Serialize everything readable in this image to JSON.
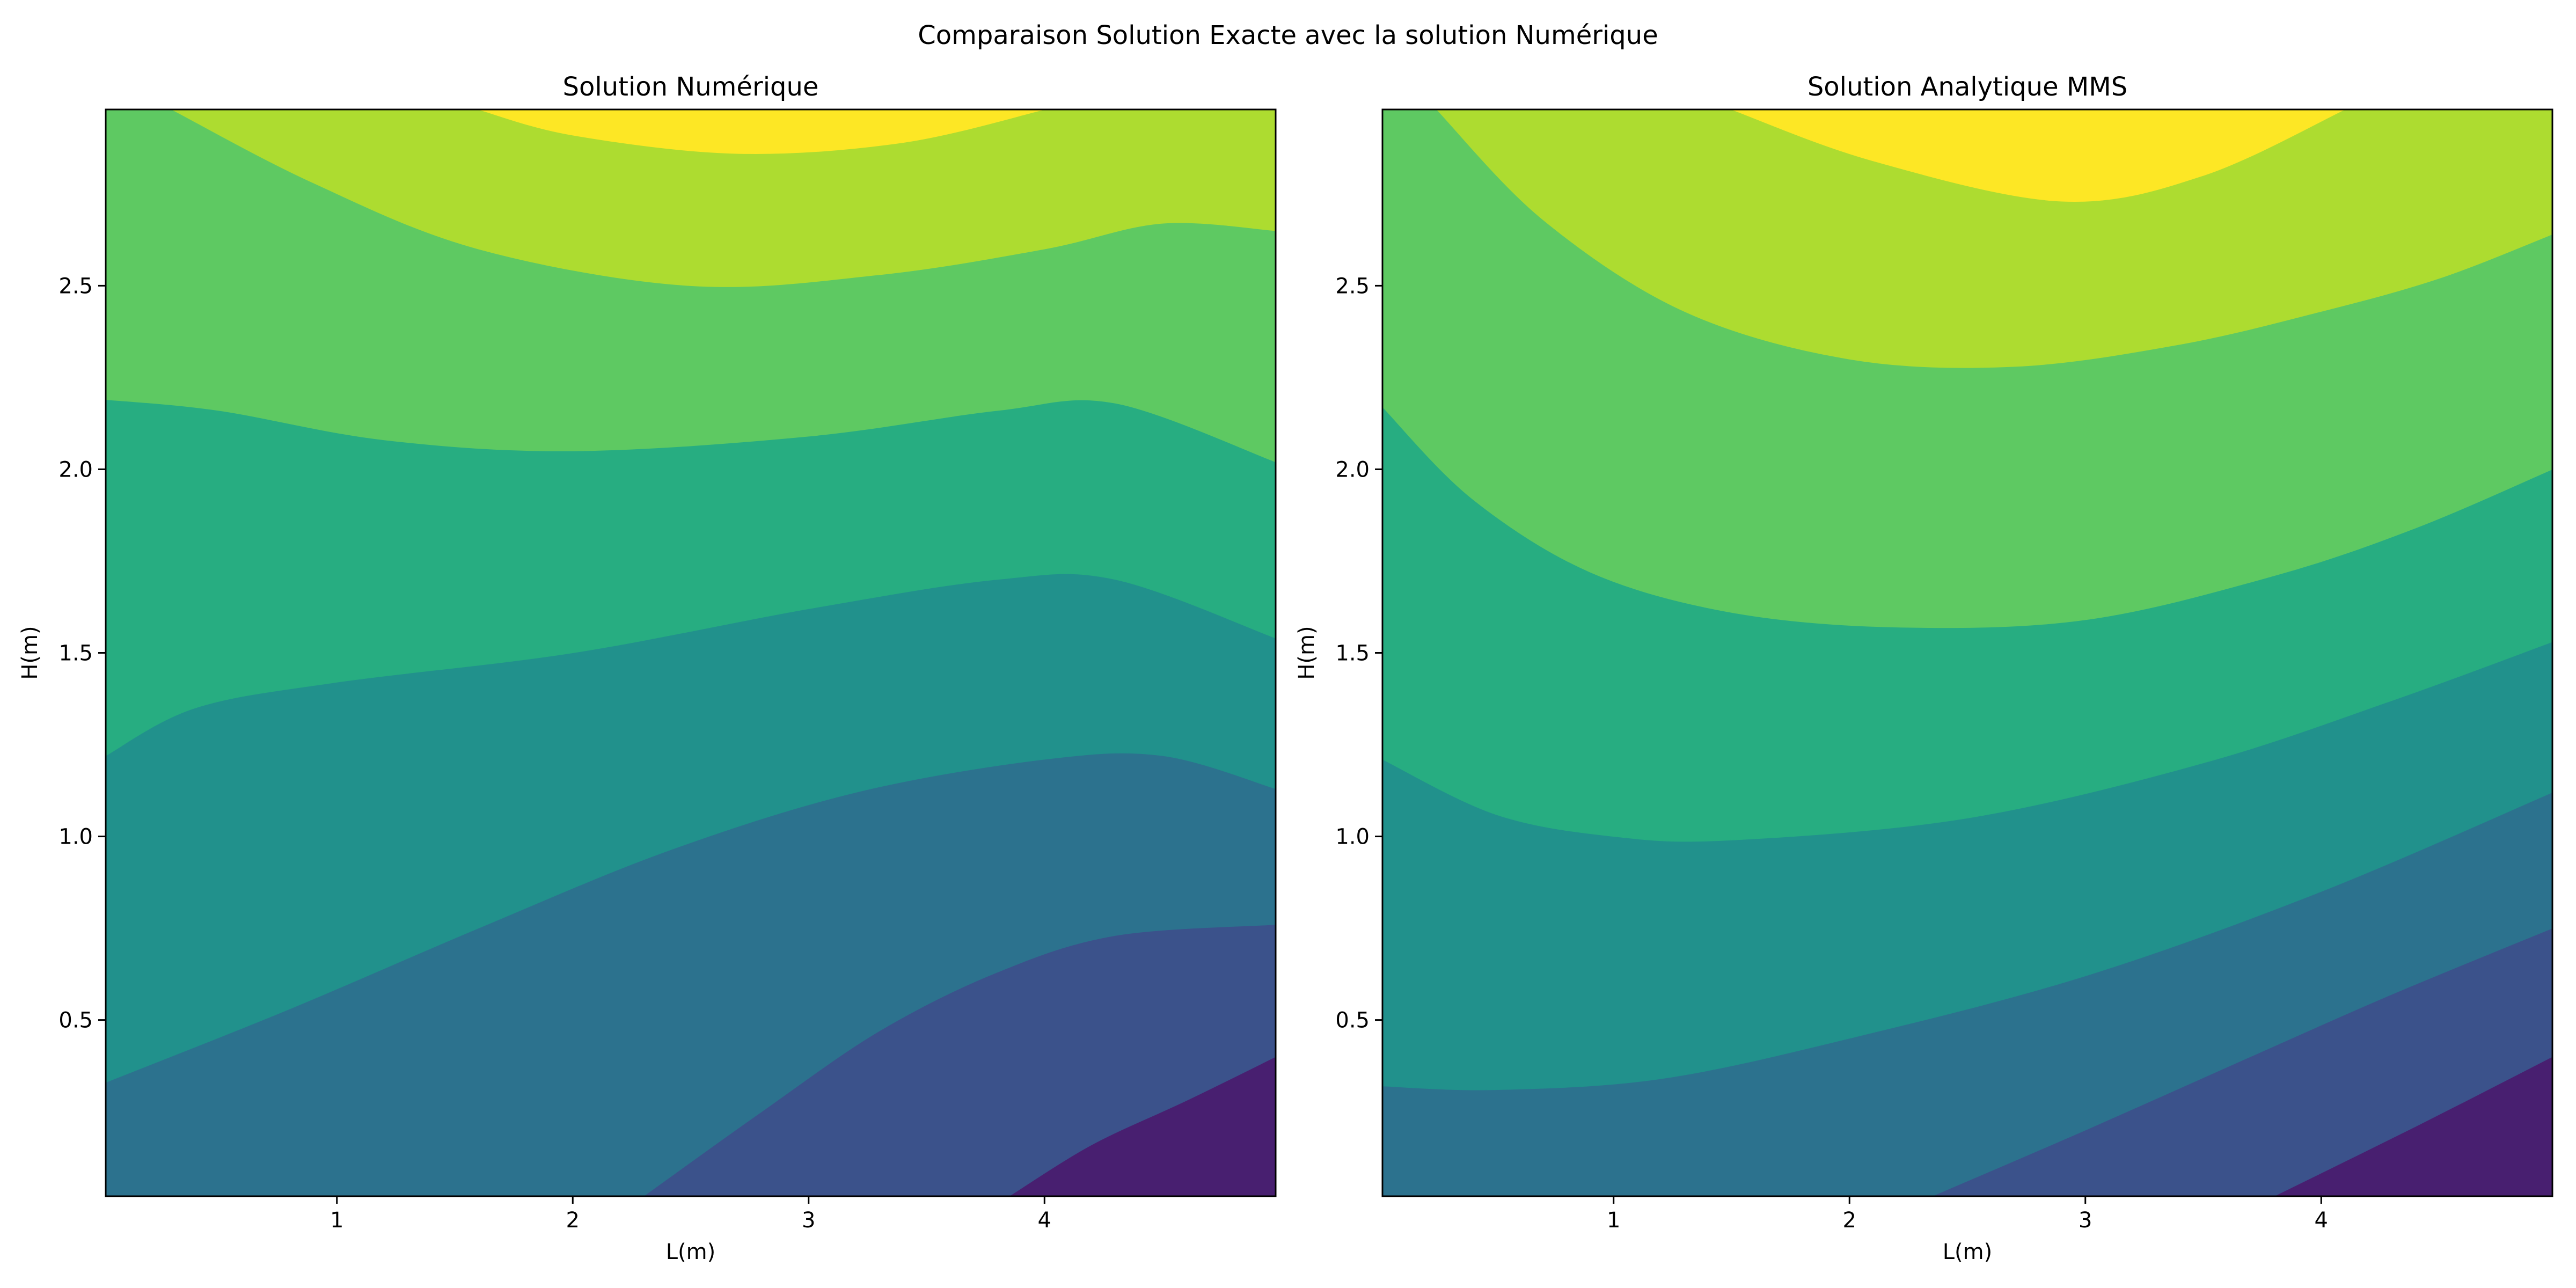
{
  "figure": {
    "suptitle": "Comparaison Solution Exacte avec la solution Numérique"
  },
  "colors": {
    "levels": [
      "#481f70",
      "#3b528b",
      "#2c728e",
      "#21918c",
      "#27ad81",
      "#5ec962",
      "#addc30",
      "#fde725"
    ]
  },
  "chart_data": [
    {
      "type": "contourf",
      "title": "Solution Numérique",
      "xlabel": "L(m)",
      "ylabel": "H(m)",
      "xlim": [
        0.02,
        4.98
      ],
      "ylim": [
        0.02,
        2.98
      ],
      "xticks": [
        1,
        2,
        3,
        4
      ],
      "yticks": [
        0.5,
        1.0,
        1.5,
        2.0,
        2.5
      ],
      "xtick_labels": [
        "1",
        "2",
        "3",
        "4"
      ],
      "ytick_labels": [
        "0.5",
        "1.0",
        "1.5",
        "2.0",
        "2.5"
      ],
      "colormap": "viridis",
      "level_boundaries": [
        {
          "level": 1,
          "points": [
            [
              3.85,
              0.02
            ],
            [
              4.2,
              0.16
            ],
            [
              4.6,
              0.28
            ],
            [
              4.98,
              0.4
            ]
          ]
        },
        {
          "level": 2,
          "points": [
            [
              2.3,
              0.02
            ],
            [
              2.8,
              0.25
            ],
            [
              3.3,
              0.47
            ],
            [
              3.8,
              0.63
            ],
            [
              4.3,
              0.73
            ],
            [
              4.98,
              0.76
            ]
          ]
        },
        {
          "level": 3,
          "points": [
            [
              0.02,
              0.33
            ],
            [
              0.8,
              0.53
            ],
            [
              1.6,
              0.75
            ],
            [
              2.4,
              0.96
            ],
            [
              3.2,
              1.12
            ],
            [
              4.0,
              1.21
            ],
            [
              4.5,
              1.22
            ],
            [
              4.98,
              1.13
            ]
          ]
        },
        {
          "level": 4,
          "points": [
            [
              0.02,
              1.22
            ],
            [
              0.4,
              1.35
            ],
            [
              1.0,
              1.42
            ],
            [
              2.0,
              1.5
            ],
            [
              3.0,
              1.62
            ],
            [
              3.8,
              1.7
            ],
            [
              4.3,
              1.7
            ],
            [
              4.98,
              1.54
            ]
          ]
        },
        {
          "level": 5,
          "points": [
            [
              0.02,
              2.19
            ],
            [
              0.5,
              2.16
            ],
            [
              1.2,
              2.08
            ],
            [
              2.0,
              2.05
            ],
            [
              3.0,
              2.09
            ],
            [
              3.8,
              2.16
            ],
            [
              4.3,
              2.18
            ],
            [
              4.98,
              2.02
            ]
          ]
        },
        {
          "level": 6,
          "points": [
            [
              0.3,
              2.98
            ],
            [
              0.9,
              2.78
            ],
            [
              1.6,
              2.6
            ],
            [
              2.5,
              2.5
            ],
            [
              3.3,
              2.53
            ],
            [
              4.0,
              2.6
            ],
            [
              4.5,
              2.67
            ],
            [
              4.98,
              2.65
            ]
          ]
        },
        {
          "level": 7,
          "points": [
            [
              1.6,
              2.98
            ],
            [
              2.0,
              2.91
            ],
            [
              2.7,
              2.86
            ],
            [
              3.4,
              2.89
            ],
            [
              4.0,
              2.98
            ]
          ]
        }
      ]
    },
    {
      "type": "contourf",
      "title": "Solution Analytique MMS",
      "xlabel": "L(m)",
      "ylabel": "H(m)",
      "xlim": [
        0.02,
        4.98
      ],
      "ylim": [
        0.02,
        2.98
      ],
      "xticks": [
        1,
        2,
        3,
        4
      ],
      "yticks": [
        0.5,
        1.0,
        1.5,
        2.0,
        2.5
      ],
      "xtick_labels": [
        "1",
        "2",
        "3",
        "4"
      ],
      "ytick_labels": [
        "0.5",
        "1.0",
        "1.5",
        "2.0",
        "2.5"
      ],
      "colormap": "viridis",
      "level_boundaries": [
        {
          "level": 1,
          "points": [
            [
              3.8,
              0.02
            ],
            [
              4.4,
              0.21
            ],
            [
              4.98,
              0.4
            ]
          ]
        },
        {
          "level": 2,
          "points": [
            [
              2.35,
              0.02
            ],
            [
              3.0,
              0.2
            ],
            [
              3.7,
              0.4
            ],
            [
              4.3,
              0.57
            ],
            [
              4.98,
              0.75
            ]
          ]
        },
        {
          "level": 3,
          "points": [
            [
              0.02,
              0.32
            ],
            [
              0.5,
              0.31
            ],
            [
              1.2,
              0.34
            ],
            [
              2.0,
              0.45
            ],
            [
              3.0,
              0.62
            ],
            [
              4.0,
              0.85
            ],
            [
              4.98,
              1.12
            ]
          ]
        },
        {
          "level": 4,
          "points": [
            [
              0.02,
              1.21
            ],
            [
              0.5,
              1.06
            ],
            [
              1.0,
              1.0
            ],
            [
              1.5,
              0.99
            ],
            [
              2.5,
              1.05
            ],
            [
              3.5,
              1.2
            ],
            [
              4.3,
              1.37
            ],
            [
              4.98,
              1.53
            ]
          ]
        },
        {
          "level": 5,
          "points": [
            [
              0.02,
              2.17
            ],
            [
              0.4,
              1.92
            ],
            [
              0.9,
              1.72
            ],
            [
              1.5,
              1.61
            ],
            [
              2.2,
              1.57
            ],
            [
              3.0,
              1.59
            ],
            [
              3.8,
              1.71
            ],
            [
              4.4,
              1.84
            ],
            [
              4.98,
              2.0
            ]
          ]
        },
        {
          "level": 6,
          "points": [
            [
              0.25,
              2.98
            ],
            [
              0.7,
              2.68
            ],
            [
              1.3,
              2.43
            ],
            [
              2.0,
              2.3
            ],
            [
              2.7,
              2.28
            ],
            [
              3.4,
              2.34
            ],
            [
              4.0,
              2.43
            ],
            [
              4.5,
              2.52
            ],
            [
              4.98,
              2.64
            ]
          ]
        },
        {
          "level": 7,
          "points": [
            [
              1.5,
              2.98
            ],
            [
              2.1,
              2.84
            ],
            [
              2.9,
              2.73
            ],
            [
              3.5,
              2.8
            ],
            [
              4.1,
              2.98
            ]
          ]
        }
      ]
    }
  ]
}
